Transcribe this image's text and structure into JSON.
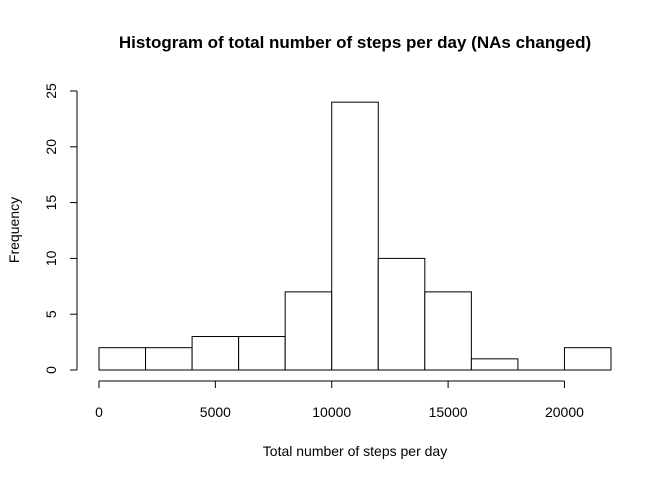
{
  "chart_data": {
    "type": "bar",
    "subtype": "histogram",
    "title": "Histogram of total number of steps per day (NAs changed)",
    "xlabel": "Total number of steps per day",
    "ylabel": "Frequency",
    "bins": [
      {
        "start": 0,
        "end": 2000,
        "count": 2
      },
      {
        "start": 2000,
        "end": 4000,
        "count": 2
      },
      {
        "start": 4000,
        "end": 6000,
        "count": 3
      },
      {
        "start": 6000,
        "end": 8000,
        "count": 3
      },
      {
        "start": 8000,
        "end": 10000,
        "count": 7
      },
      {
        "start": 10000,
        "end": 12000,
        "count": 24
      },
      {
        "start": 12000,
        "end": 14000,
        "count": 10
      },
      {
        "start": 14000,
        "end": 16000,
        "count": 7
      },
      {
        "start": 16000,
        "end": 18000,
        "count": 1
      },
      {
        "start": 18000,
        "end": 20000,
        "count": 0
      },
      {
        "start": 20000,
        "end": 22000,
        "count": 2
      }
    ],
    "xlim": [
      0,
      22000
    ],
    "ylim": [
      0,
      25
    ],
    "x_ticks": [
      0,
      5000,
      10000,
      15000,
      20000
    ],
    "x_tick_labels": [
      "0",
      "5000",
      "10000",
      "15000",
      "20000"
    ],
    "y_ticks": [
      0,
      5,
      10,
      15,
      20,
      25
    ],
    "y_tick_labels": [
      "0",
      "5",
      "10",
      "15",
      "20",
      "25"
    ],
    "grid": false,
    "legend": "none",
    "colors": {
      "bar_fill": "#ffffff",
      "bar_stroke": "#000000",
      "axis": "#000000"
    }
  }
}
